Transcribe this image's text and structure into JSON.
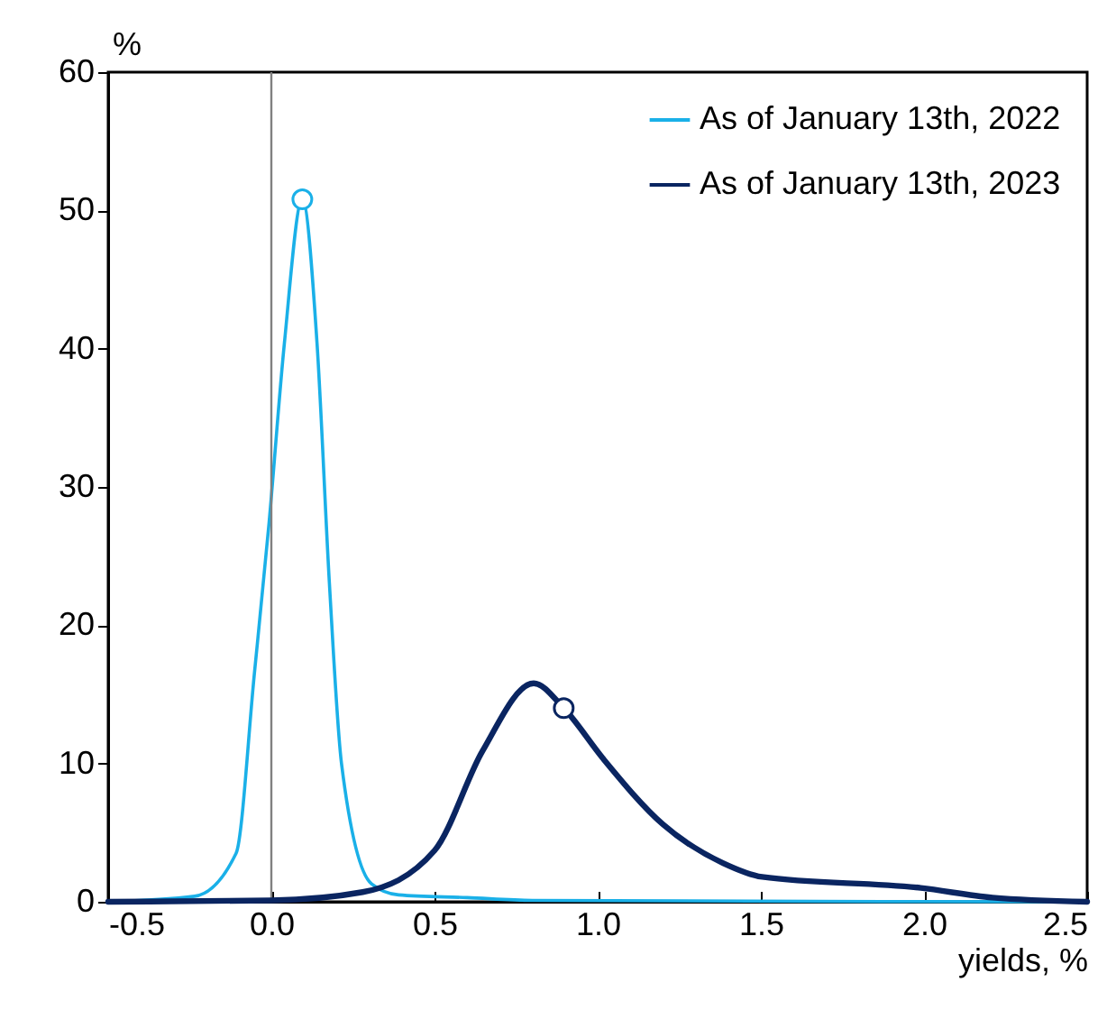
{
  "chart_data": {
    "type": "line",
    "xlabel": "yields, %",
    "ylabel": "%",
    "xlim": [
      -0.5,
      2.5
    ],
    "xticks": [
      {
        "value": -0.5,
        "label": "-0.5"
      },
      {
        "value": 0,
        "label": "0.0"
      },
      {
        "value": 0.5,
        "label": "0.5"
      },
      {
        "value": 1,
        "label": "1.0"
      },
      {
        "value": 1.5,
        "label": "1.5"
      },
      {
        "value": 2,
        "label": "2.0"
      },
      {
        "value": 2.5,
        "label": "2.5"
      }
    ],
    "ylim": [
      0,
      60
    ],
    "yticks": [
      0,
      10,
      20,
      30,
      40,
      50,
      60
    ],
    "grid": false,
    "legend": "top right",
    "series": [
      {
        "name": "As of January 13th, 2022",
        "color": "#1ab0e8",
        "x": [
          -0.5,
          -0.235,
          -0.108,
          -0.052,
          -0.007,
          0.04,
          0.095,
          0.14,
          0.178,
          0.215,
          0.307,
          0.39,
          0.6,
          0.8,
          2.5
        ],
        "values": [
          0,
          0.4,
          3.5,
          16.5,
          27.4,
          40.4,
          50.8,
          40.4,
          23,
          10,
          1.3,
          0.5,
          0.3,
          0.1,
          0
        ]
      },
      {
        "name": "As of January 13th, 2023",
        "color": "#0a2561",
        "x": [
          -0.5,
          0,
          0.28,
          0.5,
          0.647,
          0.804,
          0.896,
          1.015,
          1.2,
          1.384,
          1.504,
          1.99,
          2.21,
          2.5
        ],
        "values": [
          0,
          0.1,
          0.7,
          3.7,
          10.9,
          15.8,
          14.0,
          10.4,
          5.6,
          2.8,
          1.8,
          1.0,
          0.3,
          0
        ]
      },
      {
        "type": "scatter",
        "marker": "circle",
        "color": "#1ab0e8",
        "x": [
          0.095
        ],
        "values": [
          50.8
        ]
      },
      {
        "type": "scatter",
        "marker": "circle",
        "color": "#0a2561",
        "x": [
          0.896
        ],
        "values": [
          14.0
        ]
      }
    ],
    "ref_lines": [
      {
        "axis": "x",
        "value": 0,
        "color": "#808080"
      }
    ]
  }
}
